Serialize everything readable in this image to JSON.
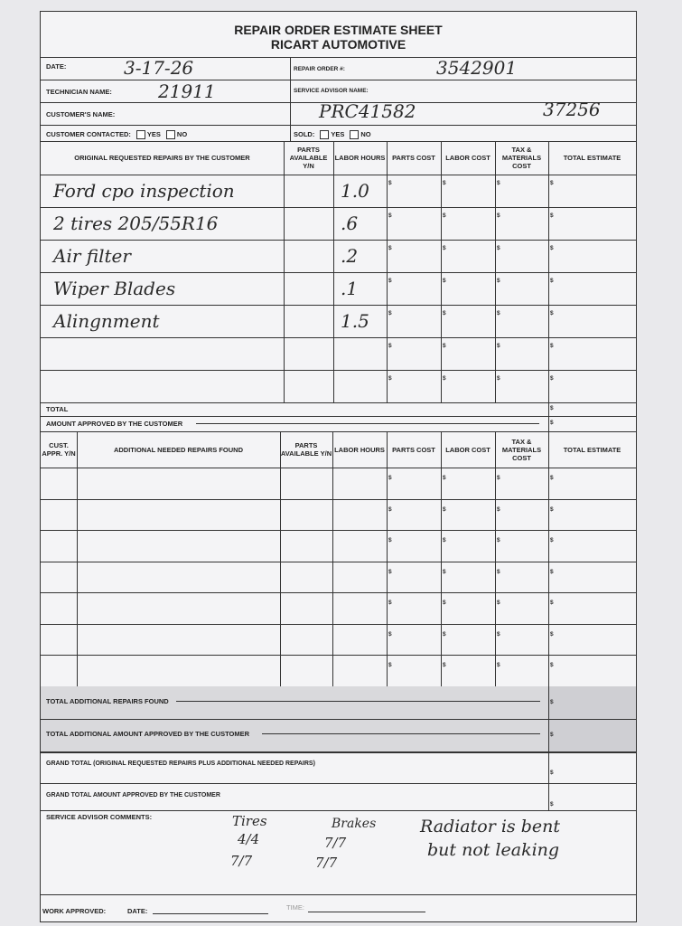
{
  "header": {
    "title": "REPAIR ORDER ESTIMATE SHEET",
    "company": "RICART AUTOMOTIVE"
  },
  "fields": {
    "date_label": "DATE:",
    "date_value": "3-17-26",
    "technician_label": "TECHNICIAN NAME:",
    "technician_value": "21911",
    "customer_label": "CUSTOMER'S NAME:",
    "contacted_label": "CUSTOMER CONTACTED:",
    "yes": "YES",
    "no": "NO",
    "repair_order_label": "REPAIR ORDER #:",
    "repair_order_value": "3542901",
    "advisor_label": "SERVICE ADVISOR NAME:",
    "advisor_value": "PRC41582",
    "advisor_extra": "37256",
    "sold_label": "SOLD:"
  },
  "original_table": {
    "headers": [
      "ORIGINAL REQUESTED REPAIRS BY THE CUSTOMER",
      "PARTS AVAILABLE Y/N",
      "LABOR HOURS",
      "PARTS COST",
      "LABOR COST",
      "TAX & MATERIALS COST",
      "TOTAL ESTIMATE"
    ],
    "rows": [
      {
        "repair": "Ford cpo inspection",
        "hours": "1.0"
      },
      {
        "repair": "2 tires 205/55R16",
        "hours": ".6"
      },
      {
        "repair": "Air filter",
        "hours": ".2"
      },
      {
        "repair": "Wiper Blades",
        "hours": ".1"
      },
      {
        "repair": "Alingnment",
        "hours": "1.5"
      },
      {
        "repair": "",
        "hours": ""
      },
      {
        "repair": "",
        "hours": ""
      }
    ],
    "currency": "$",
    "total_label": "TOTAL",
    "approved_label": "AMOUNT APPROVED BY THE CUSTOMER"
  },
  "additional_table": {
    "headers": [
      "CUST. APPR. Y/N",
      "ADDITIONAL NEEDED REPAIRS FOUND",
      "PARTS AVAILABLE Y/N",
      "LABOR HOURS",
      "PARTS COST",
      "LABOR COST",
      "TAX & MATERIALS COST",
      "TOTAL ESTIMATE"
    ],
    "row_count": 7,
    "total_label": "TOTAL ADDITIONAL REPAIRS FOUND",
    "approved_label": "TOTAL ADDITIONAL AMOUNT APPROVED BY THE CUSTOMER"
  },
  "grand": {
    "total_label": "GRAND TOTAL (Original requested repairs plus additional needed repairs)",
    "approved_label": "GRAND TOTAL AMOUNT APPROVED BY THE CUSTOMER"
  },
  "comments": {
    "label": "SERVICE ADVISOR COMMENTS:",
    "tires_label": "Tires",
    "tires_front": "4/4",
    "tires_rear": "7/7",
    "brakes_label": "Brakes",
    "brakes_front": "7/7",
    "brakes_rear": "7/7",
    "note_line1": "Radiator is bent",
    "note_line2": "but not leaking"
  },
  "footer": {
    "work_approved": "WORK APPROVED:",
    "date": "DATE:",
    "time": "TIME:"
  }
}
